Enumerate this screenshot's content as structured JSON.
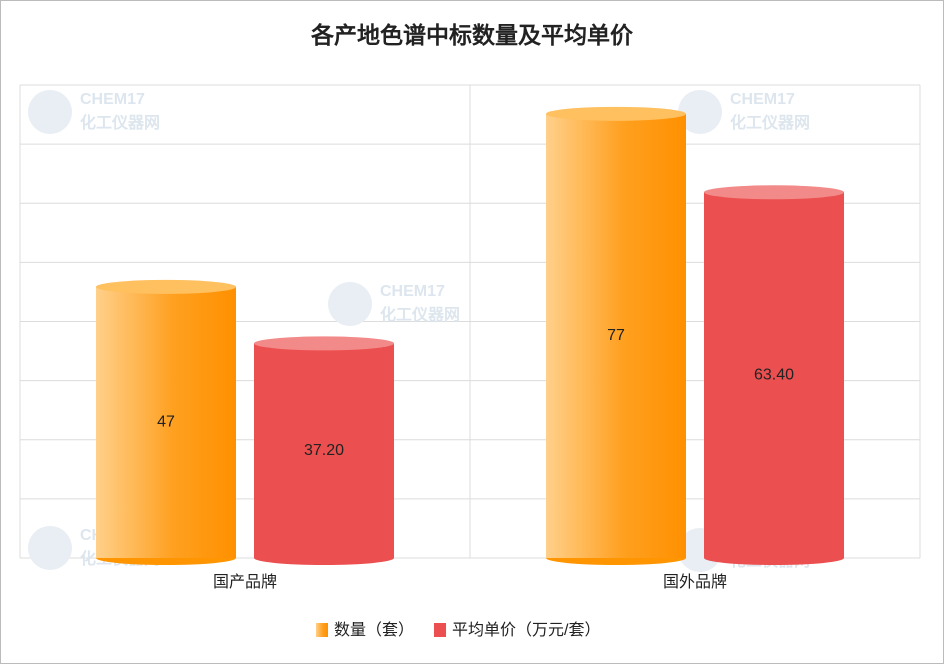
{
  "chart_data": {
    "type": "cylinder-bar",
    "title": "各产地色谱中标数量及平均单价",
    "categories": [
      "国产品牌",
      "国外品牌"
    ],
    "series": [
      {
        "name": "数量（套）",
        "color": "#ff9500",
        "values": [
          47,
          77
        ]
      },
      {
        "name": "平均单价（万元/套）",
        "color": "#ec4f4f",
        "values": [
          37.2,
          63.4
        ],
        "value_labels": [
          "37.20",
          "63.40"
        ]
      }
    ],
    "ylim": [
      0,
      82
    ],
    "grid": true,
    "legend": "bottom",
    "watermark_brand": "CHEM17",
    "watermark_name": "化工仪器网"
  }
}
